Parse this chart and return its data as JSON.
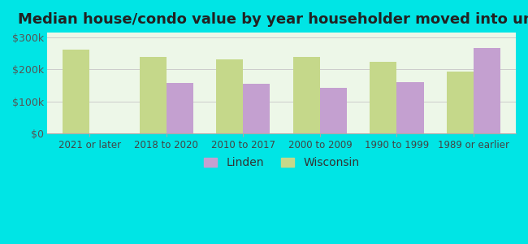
{
  "title": "Median house/condo value by year householder moved into unit",
  "categories": [
    "2021 or later",
    "2018 to 2020",
    "2010 to 2017",
    "2000 to 2009",
    "1990 to 1999",
    "1989 or earlier"
  ],
  "linden": [
    null,
    158000,
    155000,
    143000,
    160000,
    268000
  ],
  "wisconsin": [
    262000,
    240000,
    232000,
    240000,
    225000,
    193000
  ],
  "linden_color": "#c4a0d0",
  "wisconsin_color": "#c5d88a",
  "outer_bg_color": "#00e5e5",
  "plot_bg_top": "#e8f5e9",
  "plot_bg_bottom": "#f5fff5",
  "yticks": [
    0,
    100000,
    200000,
    300000
  ],
  "ytick_labels": [
    "$0",
    "$100k",
    "$200k",
    "$300k"
  ],
  "ylim": [
    0,
    315000
  ],
  "legend_linden": "Linden",
  "legend_wisconsin": "Wisconsin",
  "title_fontsize": 13,
  "bar_width": 0.35,
  "grid_color": "#cccccc"
}
